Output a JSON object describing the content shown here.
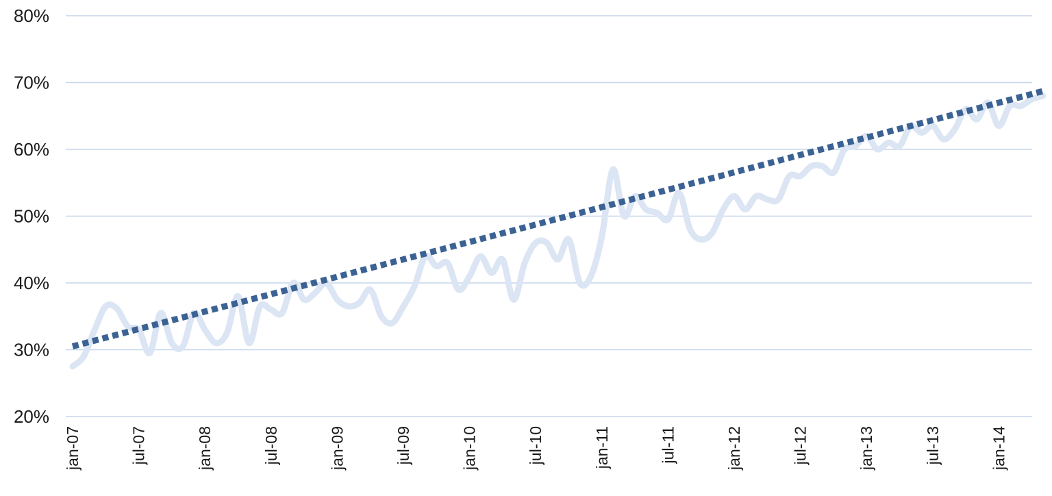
{
  "chart_data": {
    "type": "line",
    "title": "",
    "xlabel": "",
    "ylabel": "",
    "ylim": [
      20,
      80
    ],
    "y_unit": "%",
    "y_ticks": [
      "20%",
      "30%",
      "40%",
      "50%",
      "60%",
      "70%",
      "80%"
    ],
    "x_tick_labels": [
      "jan-07",
      "jul-07",
      "jan-08",
      "jul-08",
      "jan-09",
      "jul-09",
      "jan-10",
      "jul-10",
      "jan-11",
      "jul-11",
      "jan-12",
      "jul-12",
      "jan-13",
      "jul-13",
      "jan-14"
    ],
    "x_start": "jan-07",
    "x_end": "may-14",
    "grid": true,
    "legend": "none",
    "colors": {
      "series": "#dbe5f3",
      "trend": "#3b6293",
      "grid": "#c6d6ea"
    },
    "series": [
      {
        "values": [
          27.5,
          29,
          33,
          36.5,
          36.2,
          33.5,
          33,
          29.5,
          35.5,
          31,
          30.5,
          35.5,
          33,
          31,
          32.5,
          38,
          31,
          36.5,
          36,
          35.5,
          40,
          37.5,
          38.5,
          40,
          37.5,
          36.5,
          37,
          39,
          35,
          34,
          36.5,
          39.5,
          44,
          42.5,
          43,
          39,
          41,
          44,
          41.5,
          43.5,
          37.5,
          43,
          46,
          46,
          43.5,
          46.5,
          40,
          41,
          47,
          57,
          50,
          53,
          51,
          50.5,
          49.5,
          53.5,
          48,
          46.5,
          47.5,
          51,
          53,
          51,
          53,
          52.5,
          52.5,
          56,
          56,
          57.5,
          57.5,
          56.5,
          60,
          60.5,
          62,
          60,
          61,
          60.5,
          63.5,
          62.5,
          63.5,
          61.5,
          63,
          66,
          64.5,
          67,
          63.5,
          66.5,
          66.5,
          67.5,
          68
        ]
      },
      {
        "name": "",
        "style": "dotted",
        "values_linear_endpoints": [
          30.5,
          68.8
        ]
      }
    ]
  }
}
